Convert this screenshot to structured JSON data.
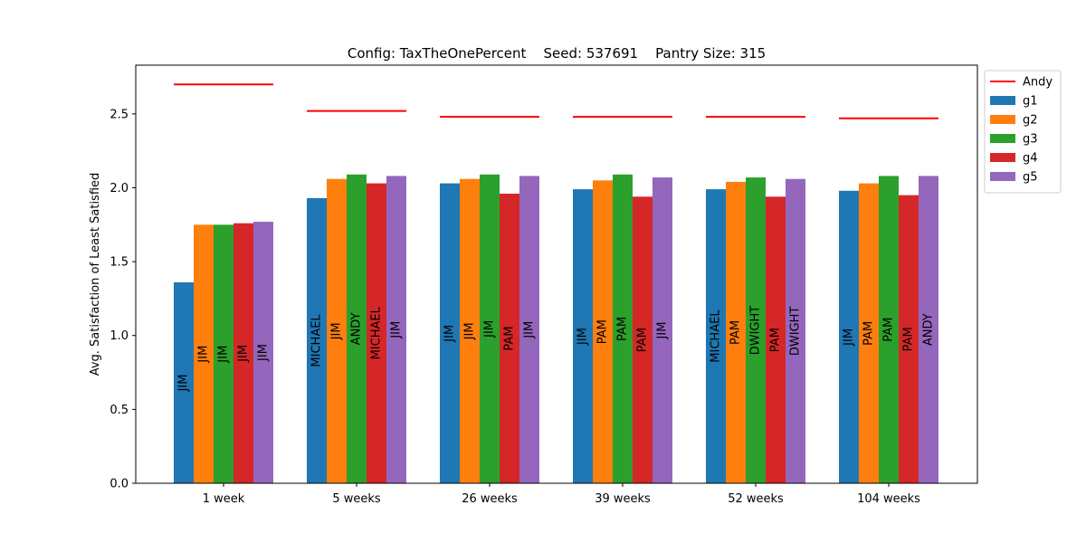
{
  "chart_data": {
    "type": "bar",
    "title": "Config: TaxTheOnePercent    Seed: 537691    Pantry Size: 315",
    "xlabel": "",
    "ylabel": "Avg. Satisfaction of Least Satisfied",
    "ylim": [
      0,
      2.83
    ],
    "yticks": [
      "0.0",
      "0.5",
      "1.0",
      "1.5",
      "2.0",
      "2.5"
    ],
    "categories": [
      "1 week",
      "5 weeks",
      "26 weeks",
      "39 weeks",
      "52 weeks",
      "104 weeks"
    ],
    "series": [
      {
        "name": "g1",
        "color": "#1f77b4",
        "values": [
          1.36,
          1.93,
          2.03,
          1.99,
          1.99,
          1.98
        ],
        "labels": [
          "JIM",
          "MICHAEL",
          "JIM",
          "JIM",
          "MICHAEL",
          "JIM"
        ]
      },
      {
        "name": "g2",
        "color": "#ff7f0e",
        "values": [
          1.75,
          2.06,
          2.06,
          2.05,
          2.04,
          2.03
        ],
        "labels": [
          "JIM",
          "JIM",
          "JIM",
          "PAM",
          "PAM",
          "PAM"
        ]
      },
      {
        "name": "g3",
        "color": "#2ca02c",
        "values": [
          1.75,
          2.09,
          2.09,
          2.09,
          2.07,
          2.08
        ],
        "labels": [
          "JIM",
          "ANDY",
          "JIM",
          "PAM",
          "DWIGHT",
          "PAM"
        ]
      },
      {
        "name": "g4",
        "color": "#d62728",
        "values": [
          1.76,
          2.03,
          1.96,
          1.94,
          1.94,
          1.95
        ],
        "labels": [
          "JIM",
          "MICHAEL",
          "PAM",
          "PAM",
          "PAM",
          "PAM"
        ]
      },
      {
        "name": "g5",
        "color": "#9467bd",
        "values": [
          1.77,
          2.08,
          2.08,
          2.07,
          2.06,
          2.08
        ],
        "labels": [
          "JIM",
          "JIM",
          "JIM",
          "JIM",
          "DWIGHT",
          "ANDY"
        ]
      }
    ],
    "reference_line": {
      "name": "Andy",
      "color": "#ff0000",
      "values": [
        2.7,
        2.52,
        2.48,
        2.48,
        2.48,
        2.47
      ]
    },
    "legend": {
      "position": "outside-right-top",
      "entries": [
        "Andy",
        "g1",
        "g2",
        "g3",
        "g4",
        "g5"
      ]
    },
    "grid": false
  }
}
